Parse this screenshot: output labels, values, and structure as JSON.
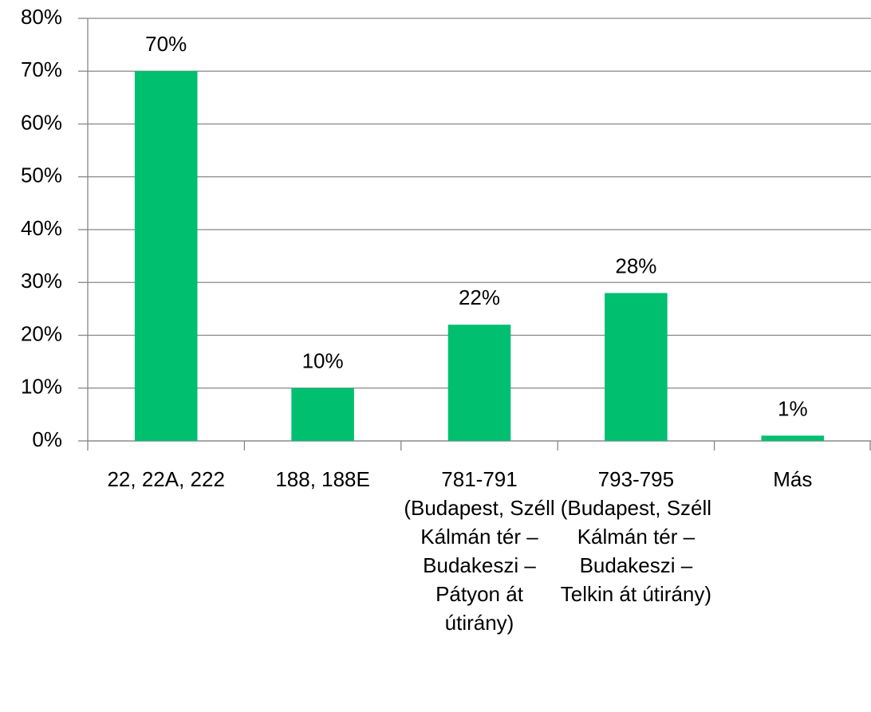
{
  "chart_data": {
    "type": "bar",
    "categories": [
      "22, 22A, 222",
      "188, 188E",
      "781-791 (Budapest, Széll Kálmán tér – Budakeszi – Pátyon át útirány)",
      "793-795 (Budapest, Széll Kálmán tér – Budakeszi – Telkin át útirány)",
      "Más"
    ],
    "values": [
      70,
      10,
      22,
      28,
      1
    ],
    "value_labels": [
      "70%",
      "10%",
      "22%",
      "28%",
      "1%"
    ],
    "color": "#00bf6f",
    "ylim": [
      0,
      80
    ],
    "yticks": [
      {
        "value": 0,
        "label": "0%"
      },
      {
        "value": 10,
        "label": "10%"
      },
      {
        "value": 20,
        "label": "20%"
      },
      {
        "value": 30,
        "label": "30%"
      },
      {
        "value": 40,
        "label": "40%"
      },
      {
        "value": 50,
        "label": "50%"
      },
      {
        "value": 60,
        "label": "60%"
      },
      {
        "value": 70,
        "label": "70%"
      },
      {
        "value": 80,
        "label": "80%"
      }
    ],
    "grid": true
  }
}
